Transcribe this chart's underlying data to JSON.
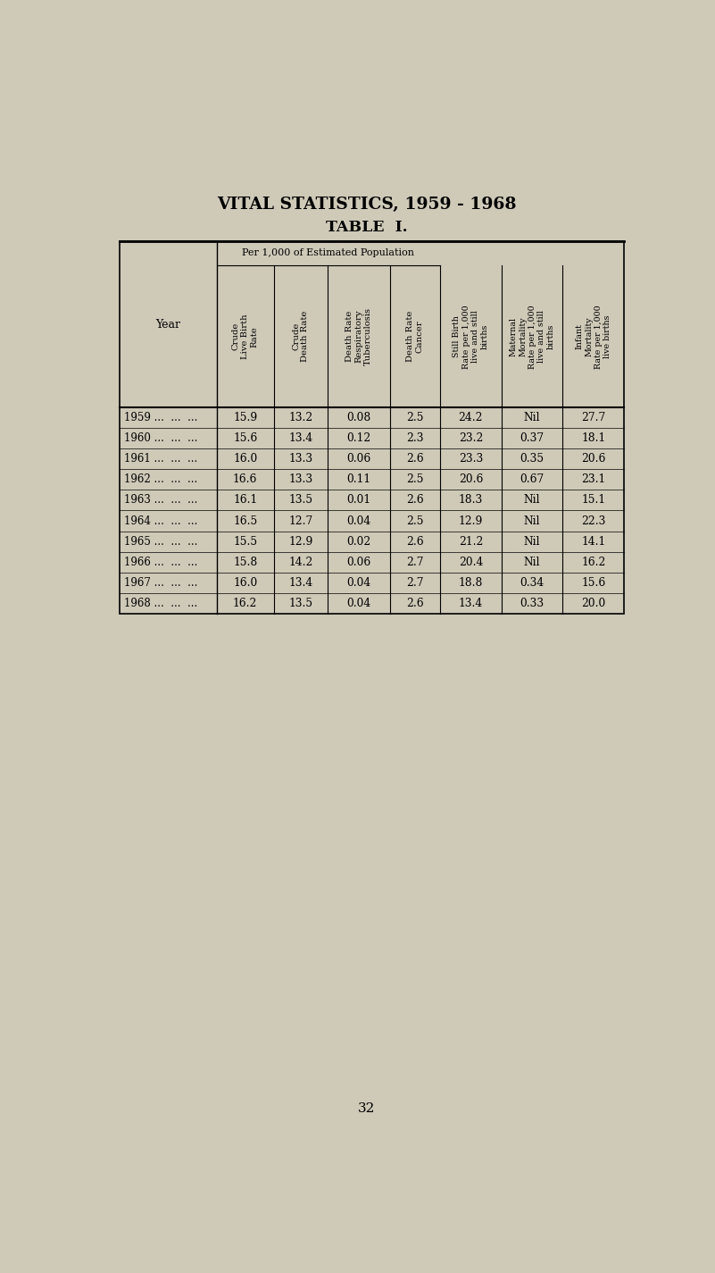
{
  "title": "VITAL STATISTICS, 1959 - 1968",
  "subtitle": "TABLE  I.",
  "background_color": "#cfc9b8",
  "years": [
    "1959",
    "1960",
    "1961",
    "1962",
    "1963",
    "1964",
    "1965",
    "1966",
    "1967",
    "1968"
  ],
  "col_headers_line1": "Per 1,000 of Estimated Population",
  "col_headers": [
    "Crude\nLive Birth\nRate",
    "Crude\nDeath Rate",
    "Death Rate\nRespiratory\nTuberculosis",
    "Death Rate\nCancer",
    "Still Birth\nRate per 1,000\nlive and still\nbirths",
    "Maternal\nMortality\nRate per 1,000\nlive and still\nbirths",
    "Infant\nMortality\nRate per 1,000\nlive births"
  ],
  "data": [
    [
      "15.9",
      "13.2",
      "0.08",
      "2.5",
      "24.2",
      "Nil",
      "27.7"
    ],
    [
      "15.6",
      "13.4",
      "0.12",
      "2.3",
      "23.2",
      "0.37",
      "18.1"
    ],
    [
      "16.0",
      "13.3",
      "0.06",
      "2.6",
      "23.3",
      "0.35",
      "20.6"
    ],
    [
      "16.6",
      "13.3",
      "0.11",
      "2.5",
      "20.6",
      "0.67",
      "23.1"
    ],
    [
      "16.1",
      "13.5",
      "0.01",
      "2.6",
      "18.3",
      "Nil",
      "15.1"
    ],
    [
      "16.5",
      "12.7",
      "0.04",
      "2.5",
      "12.9",
      "Nil",
      "22.3"
    ],
    [
      "15.5",
      "12.9",
      "0.02",
      "2.6",
      "21.2",
      "Nil",
      "14.1"
    ],
    [
      "15.8",
      "14.2",
      "0.06",
      "2.7",
      "20.4",
      "Nil",
      "16.2"
    ],
    [
      "16.0",
      "13.4",
      "0.04",
      "2.7",
      "18.8",
      "0.34",
      "15.6"
    ],
    [
      "16.2",
      "13.5",
      "0.04",
      "2.6",
      "13.4",
      "0.33",
      "20.0"
    ]
  ],
  "page_number": "32"
}
